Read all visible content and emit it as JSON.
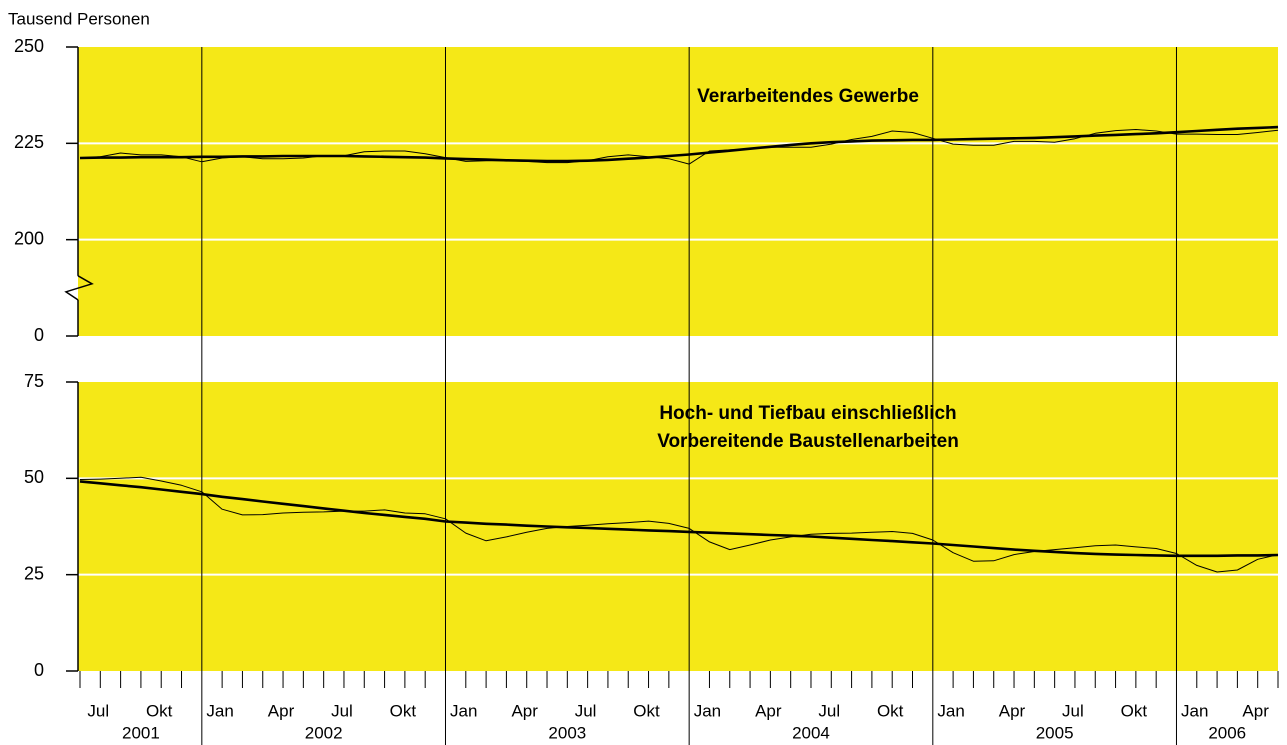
{
  "y_unit_label": "Tausend Personen",
  "x_axis": {
    "x": [
      "2001-07",
      "2001-08",
      "2001-09",
      "2001-10",
      "2001-11",
      "2001-12",
      "2002-01",
      "2002-02",
      "2002-03",
      "2002-04",
      "2002-05",
      "2002-06",
      "2002-07",
      "2002-08",
      "2002-09",
      "2002-10",
      "2002-11",
      "2002-12",
      "2003-01",
      "2003-02",
      "2003-03",
      "2003-04",
      "2003-05",
      "2003-06",
      "2003-07",
      "2003-08",
      "2003-09",
      "2003-10",
      "2003-11",
      "2003-12",
      "2004-01",
      "2004-02",
      "2004-03",
      "2004-04",
      "2004-05",
      "2004-06",
      "2004-07",
      "2004-08",
      "2004-09",
      "2004-10",
      "2004-11",
      "2004-12",
      "2005-01",
      "2005-02",
      "2005-03",
      "2005-04",
      "2005-05",
      "2005-06",
      "2005-07",
      "2005-08",
      "2005-09",
      "2005-10",
      "2005-11",
      "2005-12",
      "2006-01",
      "2006-02",
      "2006-03",
      "2006-04",
      "2006-05",
      "2006-06"
    ],
    "labels": [
      "Jul",
      null,
      null,
      "Okt",
      null,
      null,
      "Jan",
      null,
      null,
      "Apr",
      null,
      null,
      "Jul",
      null,
      null,
      "Okt",
      null,
      null,
      "Jan",
      null,
      null,
      "Apr",
      null,
      null,
      "Jul",
      null,
      null,
      "Okt",
      null,
      null,
      "Jan",
      null,
      null,
      "Apr",
      null,
      null,
      "Jul",
      null,
      null,
      "Okt",
      null,
      null,
      "Jan",
      null,
      null,
      "Apr",
      null,
      null,
      "Jul",
      null,
      null,
      "Okt",
      null,
      null,
      "Jan",
      null,
      null,
      "Apr",
      null,
      null
    ],
    "years": [
      "2001",
      "2002",
      "2003",
      "2004",
      "2005",
      "2006"
    ]
  },
  "chart_data": [
    {
      "type": "line",
      "title": [
        "Verarbeitendes Gewerbe"
      ],
      "background": "#f5e817",
      "grid": true,
      "grid_color": "#ffffff",
      "ylim": [
        0,
        250
      ],
      "yticks": [
        0,
        200,
        225,
        250
      ],
      "axis_break": true,
      "series": [
        {
          "color": "#000000",
          "values": [
            221.2,
            221.5,
            222.5,
            222,
            222,
            221.5,
            220.2,
            221.2,
            221.5,
            221,
            221,
            221.2,
            221.8,
            221.8,
            222.8,
            223,
            223,
            222.3,
            221.3,
            220.3,
            220.5,
            220.5,
            220.3,
            220,
            220,
            220.5,
            221.5,
            222,
            221.5,
            221,
            219.6,
            223,
            223.3,
            223.5,
            224,
            224,
            224,
            224.8,
            226,
            226.8,
            228.2,
            227.8,
            226.3,
            224.8,
            224.5,
            224.5,
            225.5,
            225.5,
            225.3,
            226.2,
            227.6,
            228.3,
            228.6,
            228.2,
            227.4,
            227.4,
            227.3,
            227.3,
            227.8,
            228.4
          ]
        },
        {
          "color": "#000000",
          "values": [
            221.2,
            221.3,
            221.3,
            221.4,
            221.4,
            221.4,
            221.5,
            221.5,
            221.6,
            221.6,
            221.7,
            221.7,
            221.7,
            221.7,
            221.6,
            221.5,
            221.4,
            221.3,
            221.1,
            220.9,
            220.8,
            220.6,
            220.5,
            220.4,
            220.4,
            220.5,
            220.7,
            221.0,
            221.3,
            221.7,
            222.1,
            222.6,
            223.1,
            223.6,
            224.1,
            224.6,
            225.0,
            225.3,
            225.5,
            225.7,
            225.8,
            225.9,
            225.9,
            226.0,
            226.1,
            226.2,
            226.3,
            226.4,
            226.6,
            226.8,
            227.0,
            227.2,
            227.4,
            227.6,
            227.9,
            228.2,
            228.5,
            228.8,
            229.0,
            229.2
          ]
        }
      ]
    },
    {
      "type": "line",
      "title": [
        "Hoch- und Tiefbau einschließlich",
        "Vorbereitende Baustellenarbeiten"
      ],
      "background": "#f5e817",
      "grid": true,
      "grid_color": "#ffffff",
      "ylim": [
        0,
        75
      ],
      "yticks": [
        0,
        25,
        50,
        75
      ],
      "series": [
        {
          "color": "#000000",
          "values": [
            49.7,
            49.8,
            50,
            50.3,
            49.3,
            48.2,
            46.5,
            42,
            40.5,
            40.6,
            41,
            41.2,
            41.3,
            41.5,
            41.5,
            41.8,
            41,
            40.8,
            39.5,
            35.8,
            33.8,
            34.8,
            36,
            37,
            37.5,
            37.8,
            38.2,
            38.5,
            38.9,
            38.3,
            37,
            33.5,
            31.5,
            32.7,
            34,
            34.8,
            35.5,
            35.7,
            35.8,
            36,
            36.2,
            35.7,
            34,
            30.7,
            28.5,
            28.6,
            30.2,
            31,
            31.5,
            32,
            32.5,
            32.7,
            32.2,
            31.8,
            30.5,
            27.4,
            25.7,
            26.2,
            29,
            30.2
          ]
        },
        {
          "color": "#000000",
          "values": [
            49.2,
            48.7,
            48.2,
            47.7,
            47.1,
            46.5,
            45.9,
            45.2,
            44.6,
            44.0,
            43.4,
            42.8,
            42.2,
            41.6,
            41.0,
            40.5,
            40.0,
            39.5,
            38.8,
            38.5,
            38.2,
            38.0,
            37.7,
            37.5,
            37.3,
            37.1,
            36.9,
            36.7,
            36.5,
            36.3,
            36.1,
            35.9,
            35.7,
            35.5,
            35.3,
            35.1,
            34.9,
            34.6,
            34.3,
            34.0,
            33.7,
            33.4,
            33.1,
            32.7,
            32.3,
            31.9,
            31.5,
            31.2,
            30.9,
            30.6,
            30.4,
            30.2,
            30.1,
            30.0,
            29.9,
            29.9,
            29.9,
            30.0,
            30.0,
            30.1
          ]
        }
      ]
    }
  ]
}
